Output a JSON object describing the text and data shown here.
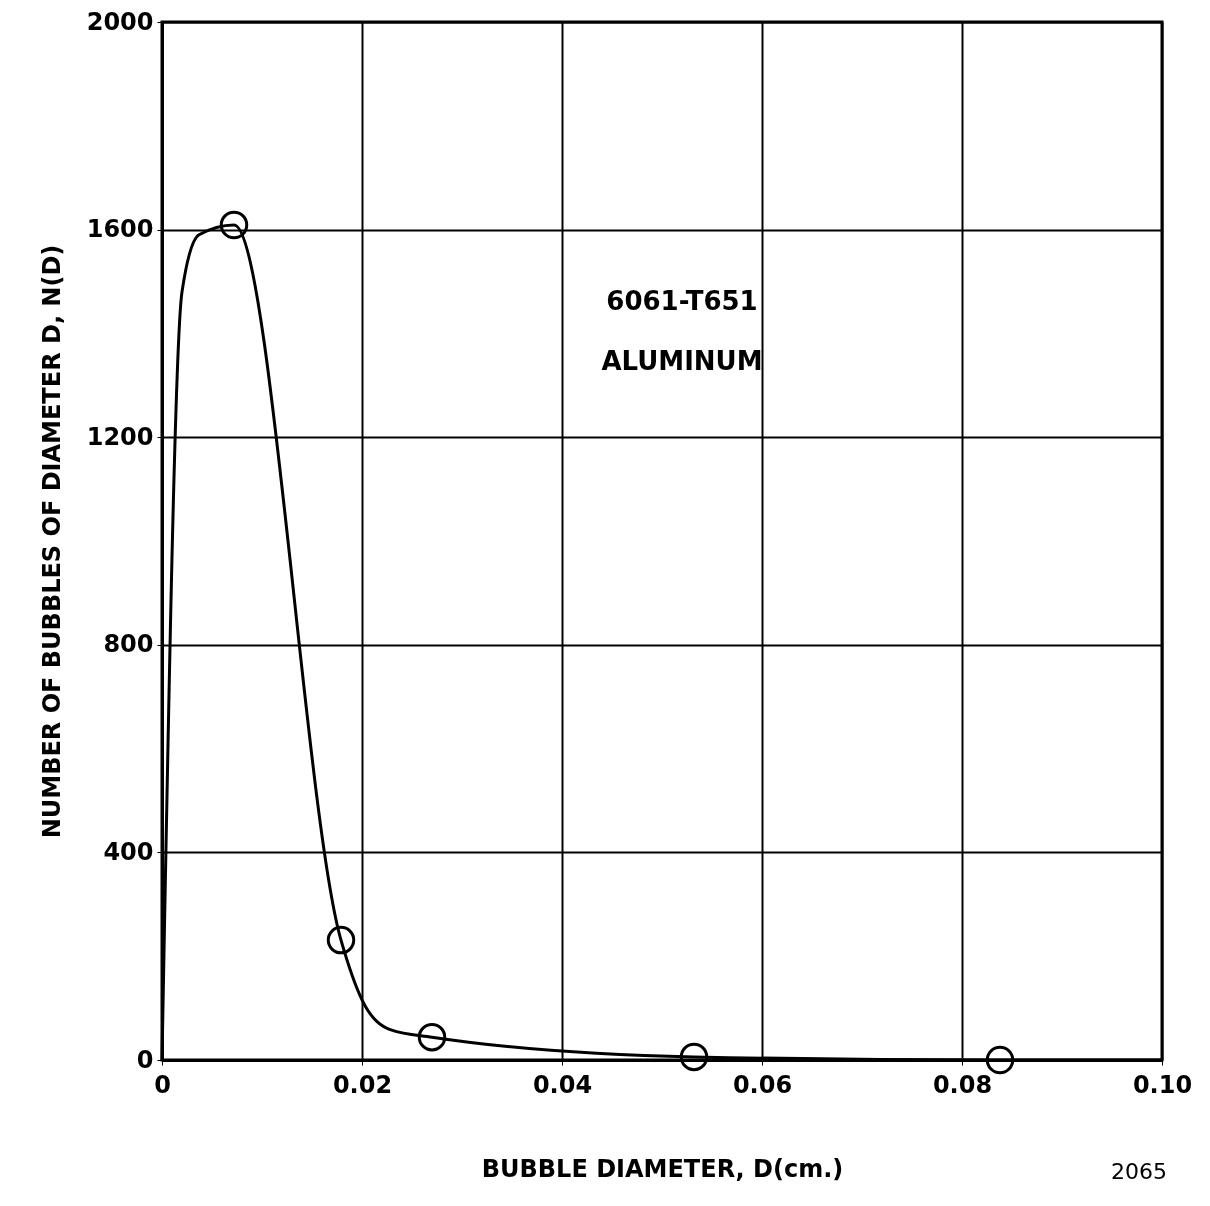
{
  "chart_data": {
    "type": "line",
    "xlabel": "BUBBLE DIAMETER, D(cm.)",
    "ylabel": "NUMBER OF BUBBLES OF DIAMETER D, N(D)",
    "annotations": [
      "6061-T651",
      "ALUMINUM",
      "2065"
    ],
    "series": [
      {
        "marker": "none",
        "color": "#000000",
        "x": [
          0,
          0.002,
          0.0037,
          0.0072,
          0.0179,
          0.02,
          0.0229,
          0.027,
          0.0532,
          0.0838,
          0.1
        ],
        "values": [
          0,
          1480,
          1590,
          1609,
          231,
          116,
          58,
          44,
          6,
          0,
          0
        ]
      },
      {
        "type": "scatter",
        "marker": "circle",
        "color": "#000000",
        "x": [
          0.0072,
          0.0179,
          0.027,
          0.0532,
          0.0838
        ],
        "values": [
          1609,
          231,
          44,
          6,
          0
        ]
      }
    ],
    "xlim": [
      0,
      0.1
    ],
    "xticks": [
      0,
      0.02,
      0.04,
      0.06,
      0.08,
      {
        "value": 0.1,
        "label": "0.10"
      }
    ],
    "ylim": [
      0,
      2000
    ],
    "yticks": [
      0,
      400,
      800,
      1200,
      1600,
      2000
    ],
    "grid": true
  }
}
